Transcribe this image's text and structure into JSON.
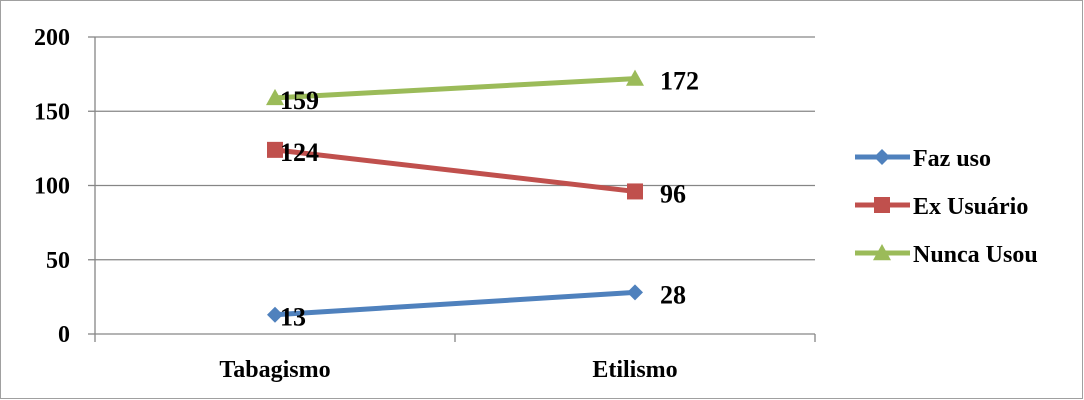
{
  "chart_data": {
    "type": "line",
    "categories": [
      "Tabagismo",
      "Etilismo"
    ],
    "series": [
      {
        "name": "Faz uso",
        "values": [
          13,
          28
        ],
        "color": "#4F81BD",
        "marker": "diamond"
      },
      {
        "name": "Ex Usuário",
        "values": [
          124,
          96
        ],
        "color": "#C0504D",
        "marker": "square"
      },
      {
        "name": "Nunca Usou",
        "values": [
          159,
          172
        ],
        "color": "#9BBB59",
        "marker": "triangle"
      }
    ],
    "ylim": [
      0,
      200
    ],
    "yticks": [
      0,
      50,
      100,
      150,
      200
    ],
    "grid": true,
    "legend": "right"
  }
}
